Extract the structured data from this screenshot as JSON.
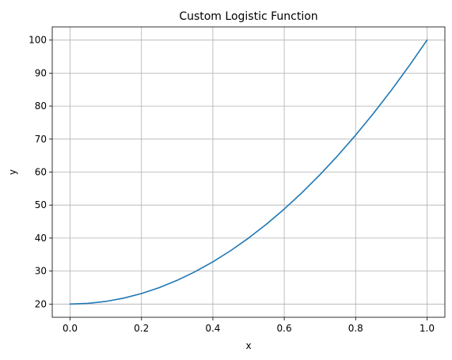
{
  "chart_data": {
    "type": "line",
    "title": "Custom Logistic Function",
    "xlabel": "x",
    "ylabel": "y",
    "xlim": [
      -0.05,
      1.05
    ],
    "ylim": [
      16,
      104
    ],
    "x_ticks": [
      "0.0",
      "0.2",
      "0.4",
      "0.6",
      "0.8",
      "1.0"
    ],
    "y_ticks": [
      "20",
      "30",
      "40",
      "50",
      "60",
      "70",
      "80",
      "90",
      "100"
    ],
    "grid": true,
    "series": [
      {
        "color": "#1f77b4",
        "x": [
          0.0,
          0.05,
          0.1,
          0.15,
          0.2,
          0.25,
          0.3,
          0.35,
          0.4,
          0.45,
          0.5,
          0.55,
          0.6,
          0.65,
          0.7,
          0.75,
          0.8,
          0.85,
          0.9,
          0.95,
          1.0
        ],
        "y": [
          20.0,
          20.2,
          20.8,
          21.8,
          23.2,
          25.0,
          27.2,
          29.8,
          32.8,
          36.2,
          40.0,
          44.2,
          48.8,
          53.8,
          59.2,
          65.0,
          71.2,
          77.8,
          84.8,
          92.2,
          100.0
        ]
      }
    ]
  }
}
